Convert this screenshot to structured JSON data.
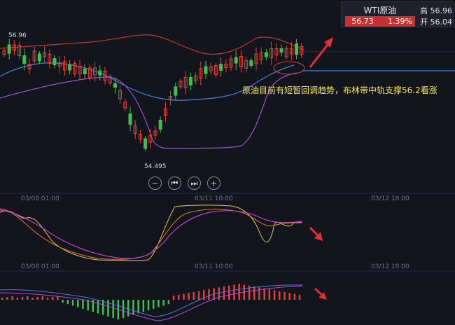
{
  "quote": {
    "name": "WTI原油",
    "price": "56.73",
    "change_pct": "1.39%",
    "high_label": "高",
    "high_value": "56.96",
    "open_label": "开",
    "open_value": "56.04"
  },
  "chart_labels": {
    "high_marker": "56.96",
    "low_marker": "54.495"
  },
  "annotation": "原油目前有短暂回调趋势，布林带中轨支撑56.2看涨",
  "dates": [
    "03/08 01:00",
    "03/11 10:00",
    "03/12 18:00"
  ],
  "controls": {
    "zoom_out": "−",
    "first": "⏮",
    "last": "⏭",
    "zoom_in": "+"
  },
  "colors": {
    "background": "#13151c",
    "up_candle": "#e0413a",
    "down_candle": "#3fbf4f",
    "boll_upper": "#c0392b",
    "boll_mid": "#4a7bd8",
    "boll_lower": "#9b4fd8",
    "support_line": "#3b6fe0",
    "arrow": "#e0302f",
    "annotation": "#f5e84a"
  }
}
